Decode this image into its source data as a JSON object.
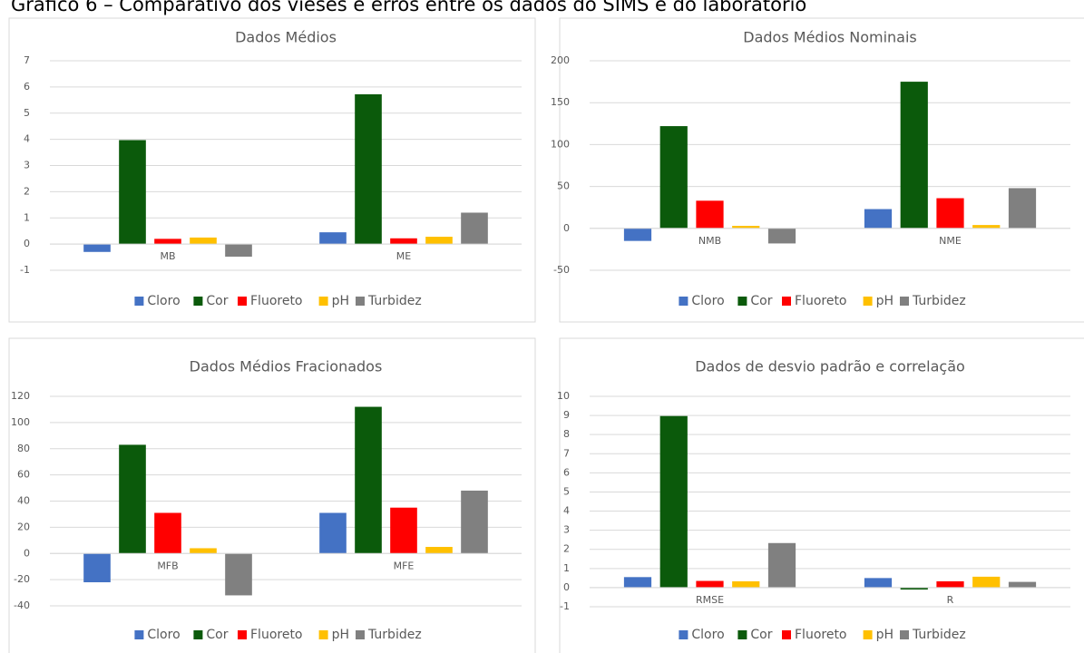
{
  "title": "Gráfico 6 – Comparativo dos vieses e erros entre os dados do SIMS e do laboratório",
  "chart_data": [
    {
      "type": "bar",
      "title": "Dados Médios",
      "categories": [
        "MB",
        "ME"
      ],
      "legend": "bottom",
      "ylim": [
        -1,
        7
      ],
      "yticks": [
        -1,
        0,
        1,
        2,
        3,
        4,
        5,
        6,
        7
      ],
      "grid": true,
      "series": [
        {
          "name": "Cloro",
          "color": "#4472c4",
          "values": [
            -0.3,
            0.45
          ]
        },
        {
          "name": "Cor",
          "color": "#0b5a0b",
          "values": [
            3.97,
            5.72
          ]
        },
        {
          "name": "Fluoreto",
          "color": "#ff0000",
          "values": [
            0.2,
            0.22
          ]
        },
        {
          "name": "pH",
          "color": "#ffc000",
          "values": [
            0.25,
            0.28
          ]
        },
        {
          "name": "Turbidez",
          "color": "#808080",
          "values": [
            -0.48,
            1.2
          ]
        }
      ]
    },
    {
      "type": "bar",
      "title": "Dados Médios Nominais",
      "categories": [
        "NMB",
        "NME"
      ],
      "legend": "bottom",
      "ylim": [
        -50,
        200
      ],
      "yticks": [
        -50,
        0,
        50,
        100,
        150,
        200
      ],
      "grid": true,
      "series": [
        {
          "name": "Cloro",
          "color": "#4472c4",
          "values": [
            -15,
            23
          ]
        },
        {
          "name": "Cor",
          "color": "#0b5a0b",
          "values": [
            122,
            175
          ]
        },
        {
          "name": "Fluoreto",
          "color": "#ff0000",
          "values": [
            33,
            36
          ]
        },
        {
          "name": "pH",
          "color": "#ffc000",
          "values": [
            3,
            4
          ]
        },
        {
          "name": "Turbidez",
          "color": "#808080",
          "values": [
            -18,
            48
          ]
        }
      ]
    },
    {
      "type": "bar",
      "title": "Dados Médios Fracionados",
      "categories": [
        "MFB",
        "MFE"
      ],
      "legend": "bottom",
      "ylim": [
        -40,
        120
      ],
      "yticks": [
        -40,
        -20,
        0,
        20,
        40,
        60,
        80,
        100,
        120
      ],
      "grid": true,
      "series": [
        {
          "name": "Cloro",
          "color": "#4472c4",
          "values": [
            -22,
            31
          ]
        },
        {
          "name": "Cor",
          "color": "#0b5a0b",
          "values": [
            83,
            112
          ]
        },
        {
          "name": "Fluoreto",
          "color": "#ff0000",
          "values": [
            31,
            35
          ]
        },
        {
          "name": "pH",
          "color": "#ffc000",
          "values": [
            4,
            5
          ]
        },
        {
          "name": "Turbidez",
          "color": "#808080",
          "values": [
            -32,
            48
          ]
        }
      ]
    },
    {
      "type": "bar",
      "title": "Dados de desvio padrão e correlação",
      "categories": [
        "RMSE",
        "R"
      ],
      "legend": "bottom",
      "ylim": [
        -1,
        10
      ],
      "yticks": [
        -1,
        0,
        1,
        2,
        3,
        4,
        5,
        6,
        7,
        8,
        9,
        10
      ],
      "grid": true,
      "series": [
        {
          "name": "Cloro",
          "color": "#4472c4",
          "values": [
            0.55,
            0.5
          ]
        },
        {
          "name": "Cor",
          "color": "#0b5a0b",
          "values": [
            8.97,
            -0.1
          ]
        },
        {
          "name": "Fluoreto",
          "color": "#ff0000",
          "values": [
            0.35,
            0.33
          ]
        },
        {
          "name": "pH",
          "color": "#ffc000",
          "values": [
            0.33,
            0.57
          ]
        },
        {
          "name": "Turbidez",
          "color": "#808080",
          "values": [
            2.33,
            0.3
          ]
        }
      ]
    }
  ]
}
